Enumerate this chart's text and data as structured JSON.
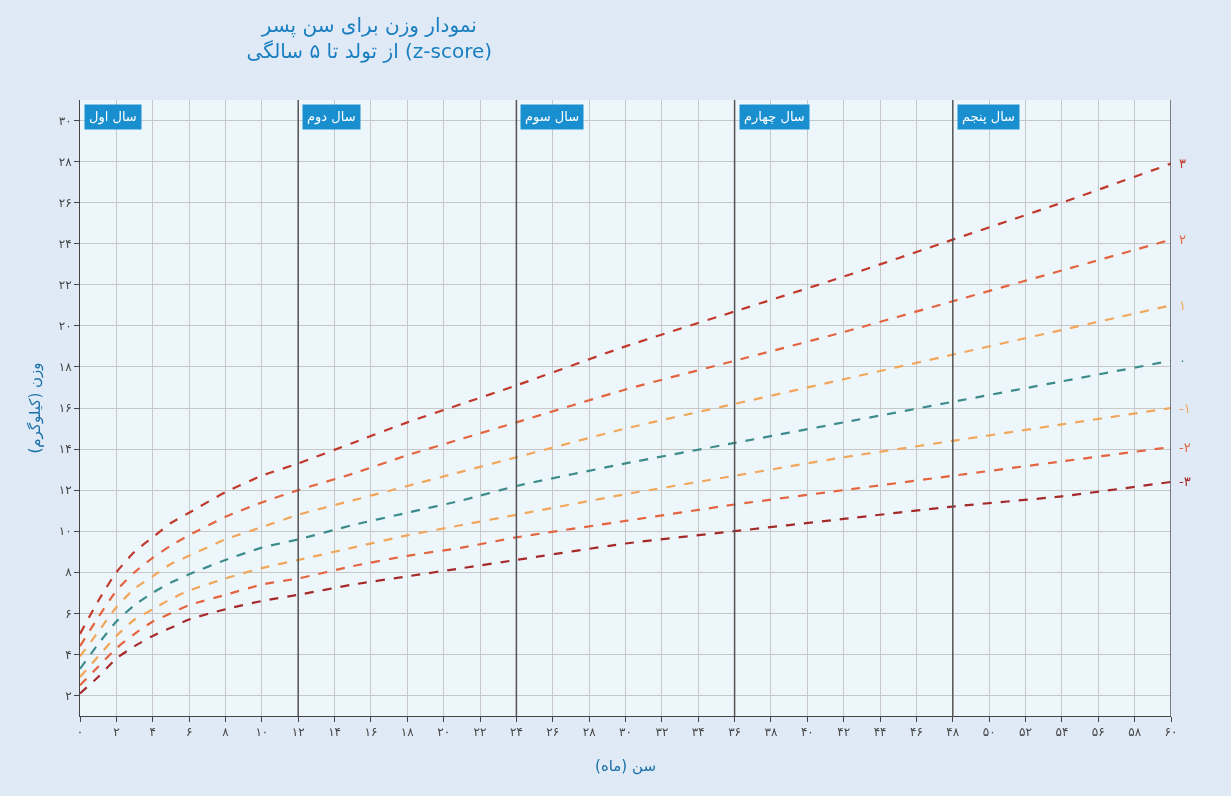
{
  "chart_data": {
    "type": "line",
    "title": "نمودار وزن برای سن پسر\nاز تولد تا ۵ سالگی (z-score)",
    "xlabel": "سن (ماه)",
    "ylabel": "وزن (کیلوگرم)",
    "x": [
      0,
      1,
      2,
      3,
      4,
      5,
      6,
      8,
      10,
      12,
      15,
      18,
      21,
      24,
      30,
      36,
      42,
      48,
      54,
      60
    ],
    "series": [
      {
        "name": "۳",
        "color": "#c0392b",
        "values": [
          5.0,
          6.6,
          8.0,
          9.0,
          9.7,
          10.4,
          10.9,
          11.9,
          12.7,
          13.3,
          14.3,
          15.3,
          16.2,
          17.1,
          19.0,
          20.7,
          22.4,
          24.2,
          26.0,
          27.9
        ]
      },
      {
        "name": "۲",
        "color": "#e4643f",
        "values": [
          4.4,
          5.8,
          7.1,
          8.0,
          8.7,
          9.3,
          9.8,
          10.7,
          11.4,
          12.0,
          12.8,
          13.7,
          14.5,
          15.3,
          16.9,
          18.3,
          19.7,
          21.2,
          22.7,
          24.2
        ]
      },
      {
        "name": "۱",
        "color": "#f2a65a",
        "values": [
          3.9,
          5.1,
          6.3,
          7.2,
          7.8,
          8.4,
          8.8,
          9.6,
          10.2,
          10.8,
          11.5,
          12.2,
          12.9,
          13.6,
          15.0,
          16.2,
          17.4,
          18.6,
          19.8,
          21.0
        ]
      },
      {
        "name": "۰",
        "color": "#3d8c8c",
        "values": [
          3.3,
          4.5,
          5.6,
          6.4,
          7.0,
          7.5,
          7.9,
          8.6,
          9.2,
          9.6,
          10.3,
          10.9,
          11.5,
          12.2,
          13.3,
          14.3,
          15.3,
          16.3,
          17.3,
          18.3
        ]
      },
      {
        "name": "-۱",
        "color": "#f2a65a",
        "values": [
          2.9,
          3.9,
          4.9,
          5.7,
          6.2,
          6.7,
          7.1,
          7.7,
          8.2,
          8.6,
          9.2,
          9.8,
          10.3,
          10.8,
          11.8,
          12.7,
          13.6,
          14.4,
          15.2,
          16.0
        ]
      },
      {
        "name": "-۲",
        "color": "#e4643f",
        "values": [
          2.5,
          3.4,
          4.3,
          5.0,
          5.6,
          6.0,
          6.4,
          6.9,
          7.4,
          7.7,
          8.3,
          8.8,
          9.2,
          9.7,
          10.5,
          11.3,
          12.0,
          12.7,
          13.4,
          14.1
        ]
      },
      {
        "name": "-۳",
        "color": "#a52a2a",
        "values": [
          2.1,
          2.9,
          3.8,
          4.4,
          4.9,
          5.3,
          5.7,
          6.2,
          6.6,
          6.9,
          7.4,
          7.8,
          8.2,
          8.6,
          9.4,
          10.0,
          10.6,
          11.2,
          11.7,
          12.4
        ]
      }
    ],
    "xlim": [
      0,
      60
    ],
    "xticks": [
      {
        "value": 0,
        "label": "۰"
      },
      {
        "value": 2,
        "label": "۲"
      },
      {
        "value": 4,
        "label": "۴"
      },
      {
        "value": 6,
        "label": "۶"
      },
      {
        "value": 8,
        "label": "۸"
      },
      {
        "value": 10,
        "label": "۱۰"
      },
      {
        "value": 12,
        "label": "۱۲"
      },
      {
        "value": 14,
        "label": "۱۴"
      },
      {
        "value": 16,
        "label": "۱۶"
      },
      {
        "value": 18,
        "label": "۱۸"
      },
      {
        "value": 20,
        "label": "۲۰"
      },
      {
        "value": 22,
        "label": "۲۲"
      },
      {
        "value": 24,
        "label": "۲۴"
      },
      {
        "value": 26,
        "label": "۲۶"
      },
      {
        "value": 28,
        "label": "۲۸"
      },
      {
        "value": 30,
        "label": "۳۰"
      },
      {
        "value": 32,
        "label": "۳۲"
      },
      {
        "value": 34,
        "label": "۳۴"
      },
      {
        "value": 36,
        "label": "۳۶"
      },
      {
        "value": 38,
        "label": "۳۸"
      },
      {
        "value": 40,
        "label": "۴۰"
      },
      {
        "value": 42,
        "label": "۴۲"
      },
      {
        "value": 44,
        "label": "۴۴"
      },
      {
        "value": 46,
        "label": "۴۶"
      },
      {
        "value": 48,
        "label": "۴۸"
      },
      {
        "value": 50,
        "label": "۵۰"
      },
      {
        "value": 52,
        "label": "۵۲"
      },
      {
        "value": 54,
        "label": "۵۴"
      },
      {
        "value": 56,
        "label": "۵۶"
      },
      {
        "value": 58,
        "label": "۵۸"
      },
      {
        "value": 60,
        "label": "۶۰"
      }
    ],
    "ylim": [
      1,
      31
    ],
    "yticks": [
      {
        "value": 2,
        "label": "۲"
      },
      {
        "value": 4,
        "label": "۴"
      },
      {
        "value": 6,
        "label": "۶"
      },
      {
        "value": 8,
        "label": "۸"
      },
      {
        "value": 10,
        "label": "۱۰"
      },
      {
        "value": 12,
        "label": "۱۲"
      },
      {
        "value": 14,
        "label": "۱۴"
      },
      {
        "value": 16,
        "label": "۱۶"
      },
      {
        "value": 18,
        "label": "۱۸"
      },
      {
        "value": 20,
        "label": "۲۰"
      },
      {
        "value": 22,
        "label": "۲۲"
      },
      {
        "value": 24,
        "label": "۲۴"
      },
      {
        "value": 26,
        "label": "۲۶"
      },
      {
        "value": 28,
        "label": "۲۸"
      },
      {
        "value": 30,
        "label": "۳۰"
      }
    ],
    "bands": [
      {
        "axis": "x",
        "from": 0,
        "to": 12,
        "label": "سال اول",
        "color": "#1a8fd0"
      },
      {
        "axis": "x",
        "from": 12,
        "to": 24,
        "label": "سال دوم",
        "color": "#1a8fd0"
      },
      {
        "axis": "x",
        "from": 24,
        "to": 36,
        "label": "سال سوم",
        "color": "#1a8fd0"
      },
      {
        "axis": "x",
        "from": 36,
        "to": 48,
        "label": "سال چهارم",
        "color": "#1a8fd0"
      },
      {
        "axis": "x",
        "from": 48,
        "to": 60,
        "label": "سال پنجم",
        "color": "#1a8fd0"
      }
    ],
    "grid": true,
    "legend": false,
    "line_style": "dashed",
    "marker": "none"
  }
}
